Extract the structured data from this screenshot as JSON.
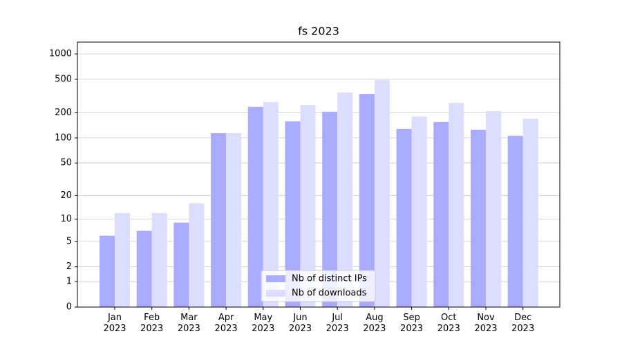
{
  "chart_data": {
    "type": "bar",
    "title": "fs 2023",
    "scale": "log1p",
    "categories": [
      "Jan\n2023",
      "Feb\n2023",
      "Mar\n2023",
      "Apr\n2023",
      "May\n2023",
      "Jun\n2023",
      "Jul\n2023",
      "Aug\n2023",
      "Sep\n2023",
      "Oct\n2023",
      "Nov\n2023",
      "Dec\n2023"
    ],
    "series": [
      {
        "name": "Nb of distinct IPs",
        "color": "#aaaaff",
        "values": [
          6,
          7,
          9,
          114,
          235,
          158,
          205,
          335,
          128,
          155,
          125,
          106
        ]
      },
      {
        "name": "Nb of downloads",
        "color": "#ddddff",
        "values": [
          12,
          12,
          16,
          114,
          267,
          248,
          348,
          490,
          180,
          262,
          209,
          170
        ]
      }
    ],
    "ylim": [
      0,
      1380
    ],
    "yticks": [
      0,
      1,
      2,
      5,
      10,
      20,
      50,
      100,
      200,
      500,
      1000
    ],
    "grid": true,
    "legend": "lower center"
  }
}
